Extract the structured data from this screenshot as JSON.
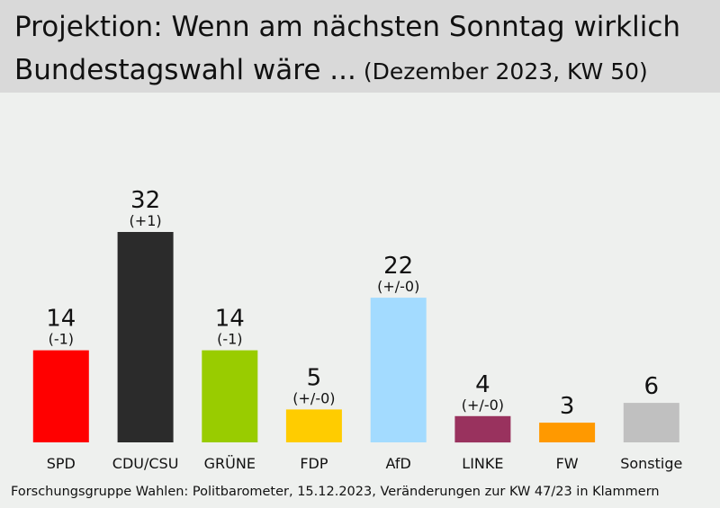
{
  "header": {
    "title_line1": "Projektion: Wenn am nächsten Sonntag wirklich",
    "title_line2": "Bundestagswahl wäre ...",
    "subtitle": "(Dezember  2023, KW 50)"
  },
  "footer": {
    "source": "Forschungsgruppe Wahlen: Politbarometer, 15.12.2023, Veränderungen zur KW 47/23 in Klammern"
  },
  "chart_data": {
    "type": "bar",
    "title": "Projektion: Wenn am nächsten Sonntag wirklich Bundestagswahl wäre ... (Dezember  2023, KW 50)",
    "categories": [
      "SPD",
      "CDU/CSU",
      "GRÜNE",
      "FDP",
      "AfD",
      "LINKE",
      "FW",
      "Sonstige"
    ],
    "values": [
      14,
      32,
      14,
      5,
      22,
      4,
      3,
      6
    ],
    "changes": [
      "(-1)",
      "(+1)",
      "(-1)",
      "(+/-0)",
      "(+/-0)",
      "(+/-0)",
      "",
      ""
    ],
    "colors": [
      "#ff0000",
      "#2b2b2b",
      "#99cc00",
      "#ffcc00",
      "#a3dbff",
      "#99325e",
      "#ff9900",
      "#c0c0c0"
    ],
    "ylim": [
      0,
      32
    ],
    "grid": false,
    "legend": "none"
  }
}
